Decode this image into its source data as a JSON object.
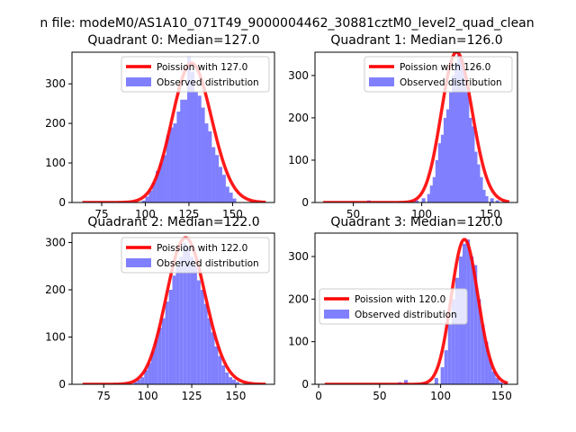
{
  "figure_title": "n file: modeM0/AS1A10_071T49_9000004462_30881cztM0_level2_quad_clean",
  "colors": {
    "bars": "#8080ff",
    "poisson": "#ff0000"
  },
  "chart_data": [
    {
      "type": "bar",
      "title": "Quadrant 0: Median=127.0",
      "xlim": [
        58,
        174
      ],
      "ylim": [
        0,
        380
      ],
      "xticks": [
        75,
        100,
        125,
        150
      ],
      "yticks": [
        0,
        100,
        200,
        300
      ],
      "legend_position": "top-right",
      "legend": [
        "Poission with 127.0",
        "Observed distribution"
      ],
      "series": [
        {
          "name": "Poission with 127.0",
          "kind": "line",
          "mean": 127.0,
          "scale": 352,
          "xmin": 64,
          "xmax": 169
        },
        {
          "name": "Observed distribution",
          "kind": "histogram",
          "bin_width": 2.1,
          "bins": [
            [
              64,
              0
            ],
            [
              98,
              5
            ],
            [
              100,
              15
            ],
            [
              102,
              30
            ],
            [
              104,
              50
            ],
            [
              106,
              80
            ],
            [
              108,
              100
            ],
            [
              110,
              120
            ],
            [
              112,
              170
            ],
            [
              114,
              190
            ],
            [
              116,
              200
            ],
            [
              118,
              230
            ],
            [
              120,
              260
            ],
            [
              122,
              260
            ],
            [
              124,
              370
            ],
            [
              126,
              330
            ],
            [
              128,
              280
            ],
            [
              130,
              270
            ],
            [
              132,
              240
            ],
            [
              134,
              200
            ],
            [
              136,
              180
            ],
            [
              138,
              140
            ],
            [
              140,
              120
            ],
            [
              142,
              90
            ],
            [
              144,
              70
            ],
            [
              146,
              40
            ],
            [
              148,
              25
            ],
            [
              150,
              10
            ]
          ]
        }
      ]
    },
    {
      "type": "bar",
      "title": "Quadrant 1: Median=126.0",
      "xlim": [
        22,
        170
      ],
      "ylim": [
        0,
        355
      ],
      "xticks": [
        50,
        100,
        150
      ],
      "yticks": [
        0,
        100,
        200,
        300
      ],
      "legend_position": "top-right",
      "legend": [
        "Poission with 126.0",
        "Observed distribution"
      ],
      "series": [
        {
          "name": "Poission with 126.0",
          "kind": "line",
          "mean": 126.0,
          "scale": 355,
          "xmin": 28,
          "xmax": 164
        },
        {
          "name": "Observed distribution",
          "kind": "histogram",
          "bin_width": 2.7,
          "bins": [
            [
              28,
              0
            ],
            [
              60,
              5
            ],
            [
              95,
              5
            ],
            [
              100,
              10
            ],
            [
              104,
              20
            ],
            [
              106,
              40
            ],
            [
              108,
              60
            ],
            [
              110,
              100
            ],
            [
              112,
              140
            ],
            [
              114,
              160
            ],
            [
              116,
              200
            ],
            [
              118,
              220
            ],
            [
              120,
              260
            ],
            [
              122,
              300
            ],
            [
              124,
              330
            ],
            [
              126,
              350
            ],
            [
              128,
              340
            ],
            [
              130,
              300
            ],
            [
              132,
              260
            ],
            [
              134,
              200
            ],
            [
              136,
              180
            ],
            [
              138,
              120
            ],
            [
              140,
              90
            ],
            [
              142,
              60
            ],
            [
              144,
              30
            ],
            [
              146,
              15
            ],
            [
              150,
              10
            ],
            [
              154,
              5
            ]
          ]
        }
      ]
    },
    {
      "type": "bar",
      "title": "Quadrant 2: Median=122.0",
      "xlim": [
        57,
        172
      ],
      "ylim": [
        0,
        320
      ],
      "xticks": [
        75,
        100,
        125,
        150
      ],
      "yticks": [
        0,
        100,
        200,
        300
      ],
      "legend_position": "top-right",
      "legend": [
        "Poission with 122.0",
        "Observed distribution"
      ],
      "series": [
        {
          "name": "Poission with 122.0",
          "kind": "line",
          "mean": 122.0,
          "scale": 310,
          "xmin": 63,
          "xmax": 167
        },
        {
          "name": "Observed distribution",
          "kind": "histogram",
          "bin_width": 2.0,
          "bins": [
            [
              63,
              0
            ],
            [
              92,
              5
            ],
            [
              94,
              10
            ],
            [
              96,
              15
            ],
            [
              98,
              30
            ],
            [
              100,
              45
            ],
            [
              102,
              70
            ],
            [
              104,
              95
            ],
            [
              106,
              120
            ],
            [
              108,
              140
            ],
            [
              110,
              175
            ],
            [
              112,
              200
            ],
            [
              114,
              230
            ],
            [
              116,
              250
            ],
            [
              118,
              270
            ],
            [
              120,
              300
            ],
            [
              122,
              290
            ],
            [
              124,
              270
            ],
            [
              126,
              250
            ],
            [
              128,
              220
            ],
            [
              130,
              200
            ],
            [
              132,
              170
            ],
            [
              134,
              140
            ],
            [
              136,
              110
            ],
            [
              138,
              80
            ],
            [
              140,
              60
            ],
            [
              142,
              40
            ],
            [
              144,
              25
            ],
            [
              146,
              15
            ],
            [
              148,
              10
            ],
            [
              150,
              5
            ]
          ]
        }
      ]
    },
    {
      "type": "bar",
      "title": "Quadrant 3: Median=120.0",
      "xlim": [
        -3,
        163
      ],
      "ylim": [
        0,
        355
      ],
      "xticks": [
        0,
        50,
        100,
        150
      ],
      "yticks": [
        0,
        100,
        200,
        300
      ],
      "legend_position": "center-left",
      "legend": [
        "Poission with 120.0",
        "Observed distribution"
      ],
      "series": [
        {
          "name": "Poission with 120.0",
          "kind": "line",
          "mean": 120.0,
          "scale": 340,
          "xmin": 5,
          "xmax": 155
        },
        {
          "name": "Observed distribution",
          "kind": "histogram",
          "bin_width": 3.0,
          "bins": [
            [
              5,
              0
            ],
            [
              65,
              5
            ],
            [
              70,
              10
            ],
            [
              85,
              5
            ],
            [
              95,
              15
            ],
            [
              100,
              40
            ],
            [
              103,
              80
            ],
            [
              106,
              140
            ],
            [
              109,
              200
            ],
            [
              112,
              250
            ],
            [
              115,
              300
            ],
            [
              118,
              330
            ],
            [
              121,
              340
            ],
            [
              124,
              300
            ],
            [
              127,
              280
            ],
            [
              130,
              200
            ],
            [
              133,
              140
            ],
            [
              136,
              100
            ],
            [
              139,
              60
            ],
            [
              142,
              30
            ],
            [
              145,
              15
            ],
            [
              148,
              5
            ],
            [
              152,
              3
            ]
          ]
        }
      ]
    }
  ]
}
